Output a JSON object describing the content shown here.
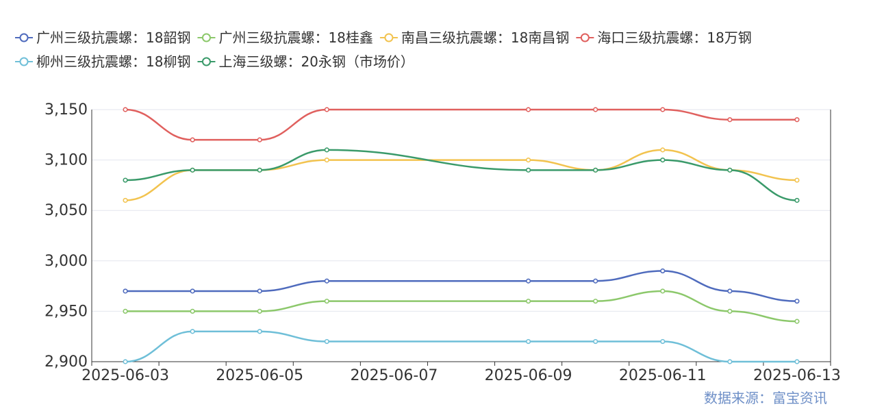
{
  "chart_data": {
    "type": "line",
    "x": [
      "2025-06-03",
      "2025-06-04",
      "2025-06-05",
      "2025-06-06",
      "2025-06-09",
      "2025-06-10",
      "2025-06-11",
      "2025-06-12",
      "2025-06-13"
    ],
    "x_ticks": [
      "2025-06-03",
      "2025-06-05",
      "2025-06-07",
      "2025-06-09",
      "2025-06-11",
      "2025-06-13"
    ],
    "ylim": [
      2900,
      3150
    ],
    "y_ticks": [
      "2,900",
      "2,950",
      "3,000",
      "3,050",
      "3,100",
      "3,150"
    ],
    "series": [
      {
        "name": "广州三级抗震螺：18韶钢",
        "color": "#4f6bbd",
        "values": [
          2970,
          2970,
          2970,
          2980,
          2980,
          2980,
          2990,
          2970,
          2960
        ]
      },
      {
        "name": "广州三级抗震螺：18桂鑫",
        "color": "#8cc86b",
        "values": [
          2950,
          2950,
          2950,
          2960,
          2960,
          2960,
          2970,
          2950,
          2940
        ]
      },
      {
        "name": "南昌三级抗震螺：18南昌钢",
        "color": "#f2c34f",
        "values": [
          3060,
          3090,
          3090,
          3100,
          3100,
          3090,
          3110,
          3090,
          3080
        ]
      },
      {
        "name": "海口三级抗震螺：18万钢",
        "color": "#e0605e",
        "values": [
          3150,
          3120,
          3120,
          3150,
          3150,
          3150,
          3150,
          3140,
          3140
        ]
      },
      {
        "name": "柳州三级抗震螺：18柳钢",
        "color": "#6fbfd8",
        "values": [
          2900,
          2930,
          2930,
          2920,
          2920,
          2920,
          2920,
          2900,
          2900
        ]
      },
      {
        "name": "上海三级螺：20永钢（市场价）",
        "color": "#3a9a6a",
        "values": [
          3080,
          3090,
          3090,
          3110,
          3090,
          3090,
          3100,
          3090,
          3060
        ]
      }
    ],
    "grid": true,
    "legend_position": "top-left",
    "source": "数据来源：富宝资讯"
  }
}
